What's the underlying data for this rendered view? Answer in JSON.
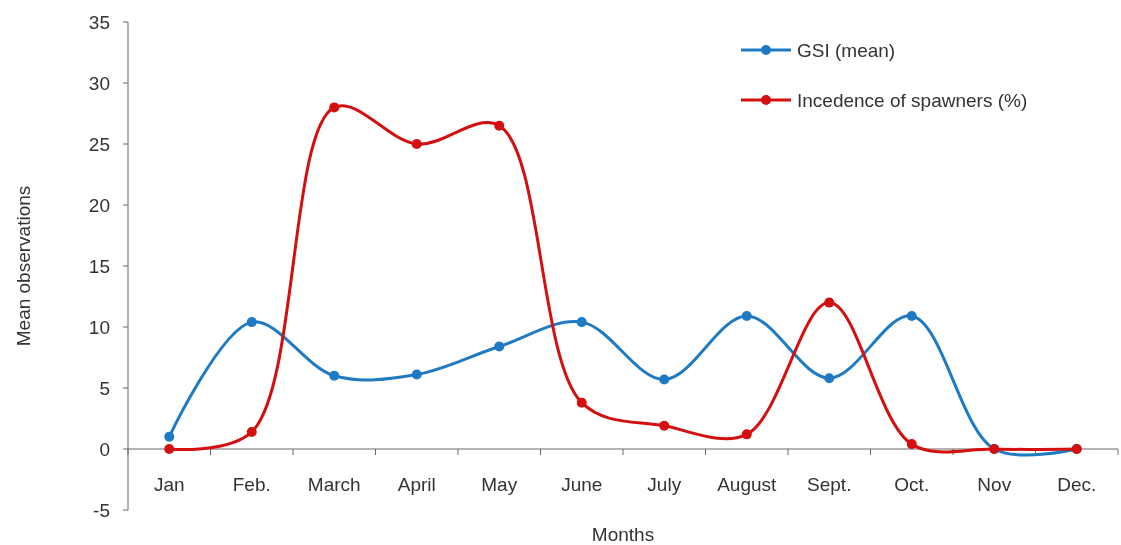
{
  "chart_data": {
    "type": "line",
    "xlabel": "Months",
    "ylabel": "Mean observations",
    "categories": [
      "Jan",
      "Feb.",
      "March",
      "April",
      "May",
      "June",
      "July",
      "August",
      "Sept.",
      "Oct.",
      "Nov",
      "Dec."
    ],
    "series": [
      {
        "name": "GSI (mean)",
        "color": "#1f7ac4",
        "values": [
          1,
          10.4,
          6,
          6.1,
          8.4,
          10.4,
          5.7,
          10.9,
          5.8,
          10.9,
          0,
          0
        ]
      },
      {
        "name": "Incedence of spawners (%)",
        "color": "#d40f0f",
        "values": [
          0,
          1.4,
          28,
          25,
          26.5,
          3.8,
          1.9,
          1.2,
          12,
          0.4,
          0,
          0
        ]
      }
    ],
    "ylim": [
      -5,
      35
    ],
    "yticks": [
      -5,
      0,
      5,
      10,
      15,
      20,
      25,
      30,
      35
    ],
    "grid": false,
    "legend": "top right",
    "marker": "circle",
    "line_style": "solid"
  }
}
